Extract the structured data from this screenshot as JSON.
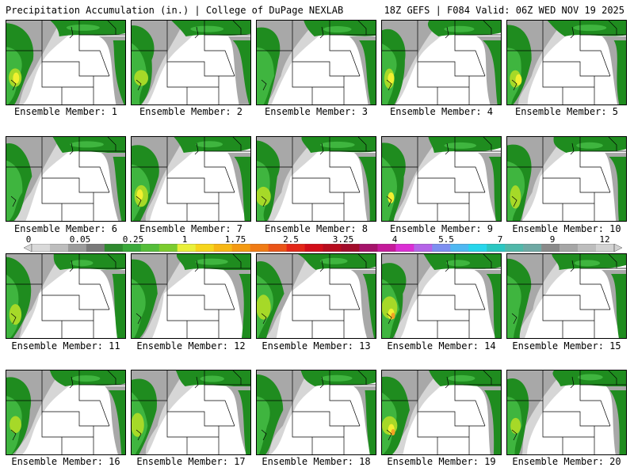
{
  "header": {
    "left": "Precipitation Accumulation (in.) | College of DuPage NEXLAB",
    "right": "18Z GEFS | F084 Valid: 06Z WED NOV 19 2025"
  },
  "members": [
    {
      "label": "Ensemble Member: 1"
    },
    {
      "label": "Ensemble Member: 2"
    },
    {
      "label": "Ensemble Member: 3"
    },
    {
      "label": "Ensemble Member: 4"
    },
    {
      "label": "Ensemble Member: 5"
    },
    {
      "label": "Ensemble Member: 6"
    },
    {
      "label": "Ensemble Member: 7"
    },
    {
      "label": "Ensemble Member: 8"
    },
    {
      "label": "Ensemble Member: 9"
    },
    {
      "label": "Ensemble Member: 10"
    },
    {
      "label": "Ensemble Member: 11"
    },
    {
      "label": "Ensemble Member: 12"
    },
    {
      "label": "Ensemble Member: 13"
    },
    {
      "label": "Ensemble Member: 14"
    },
    {
      "label": "Ensemble Member: 15"
    },
    {
      "label": "Ensemble Member: 16"
    },
    {
      "label": "Ensemble Member: 17"
    },
    {
      "label": "Ensemble Member: 18"
    },
    {
      "label": "Ensemble Member: 19"
    },
    {
      "label": "Ensemble Member: 20"
    }
  ],
  "colorbar": {
    "tick_labels": [
      "0",
      "0.05",
      "0.25",
      "1",
      "1.75",
      "2.5",
      "3.25",
      "4",
      "5.5",
      "7",
      "9",
      "12"
    ],
    "colors": [
      "#d9d9d9",
      "#bdbdbd",
      "#9c9c9c",
      "#7a7a7a",
      "#2f8a2f",
      "#3aa83a",
      "#55bd3a",
      "#7bcc2e",
      "#e9f03a",
      "#f6d51c",
      "#f7b714",
      "#f49a12",
      "#f07b14",
      "#ea5418",
      "#e32617",
      "#d20d19",
      "#b70c1e",
      "#a10b2a",
      "#a5136a",
      "#c41a9a",
      "#db2fd4",
      "#b564e8",
      "#7d8ff0",
      "#4fb8f2",
      "#27d6ec",
      "#2bc7c2",
      "#51b8aa",
      "#6fa9a4",
      "#8a8a8a",
      "#a6a6a6",
      "#bdbdbd",
      "#d2d2d2"
    ]
  },
  "map_colors": {
    "light_gray": "#d6d6d6",
    "gray": "#a8a8a8",
    "green": "#1f8c1f",
    "bright_green": "#3fb53f",
    "yellow_green": "#a6d928",
    "yellow": "#f2f030",
    "orange": "#f2a324",
    "border": "#000000"
  }
}
